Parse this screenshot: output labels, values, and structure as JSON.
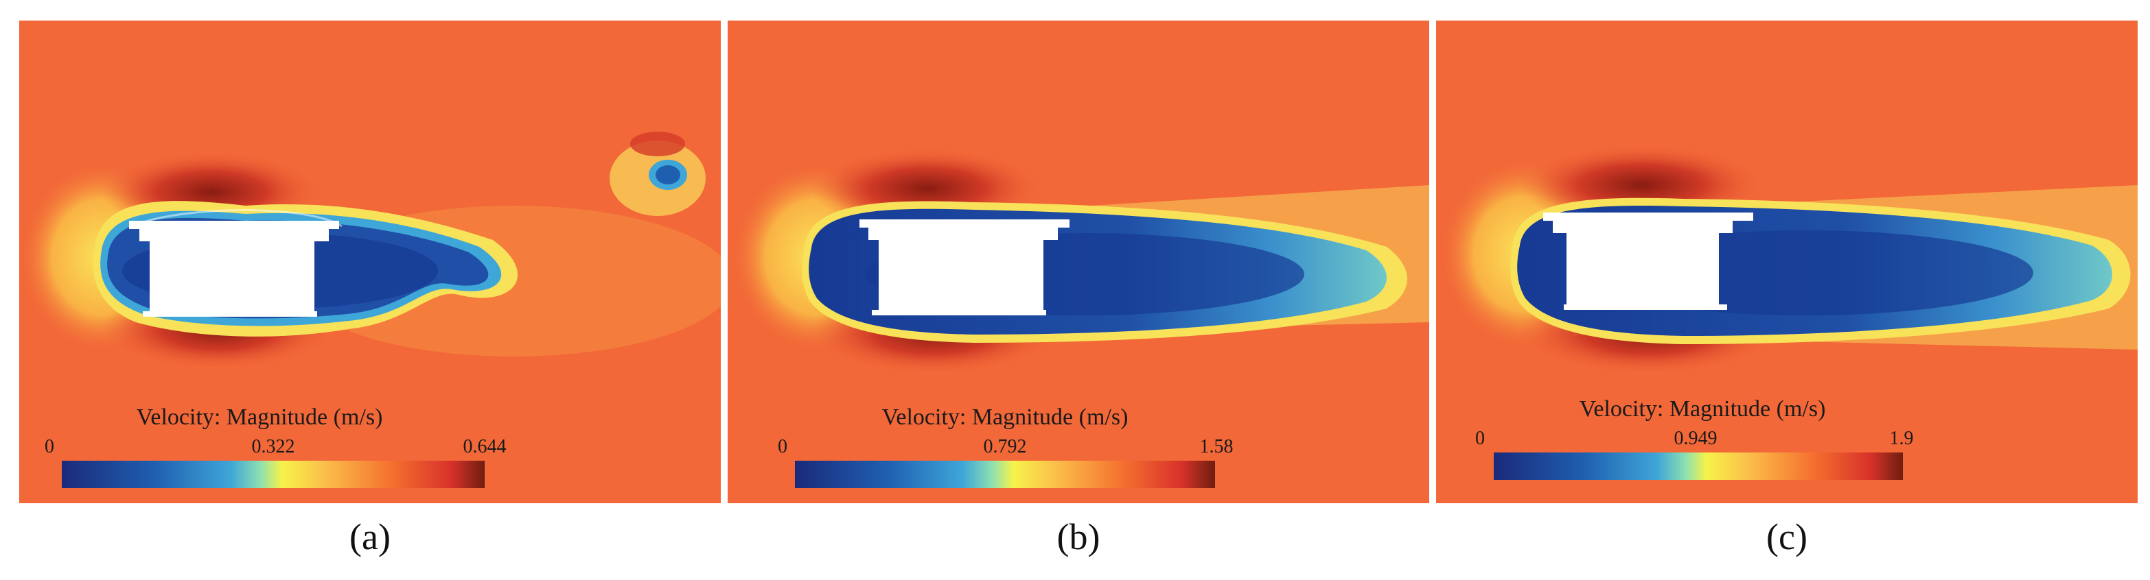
{
  "colors": {
    "freestream": "#f26838",
    "wake_core": "#1a3f9a",
    "colormap": [
      "#1b2a7a",
      "#1f5fb0",
      "#3fa6d8",
      "#8fe0b0",
      "#f6f34a",
      "#fbc04a",
      "#f5702f",
      "#d8322a",
      "#6e1e10"
    ]
  },
  "panels": [
    {
      "caption": "(a)",
      "colorbar": {
        "title": "Velocity: Magnitude (m/s)",
        "min": "0",
        "mid": "0.322",
        "max": "0.644"
      }
    },
    {
      "caption": "(b)",
      "colorbar": {
        "title": "Velocity: Magnitude (m/s)",
        "min": "0",
        "mid": "0.792",
        "max": "1.58"
      }
    },
    {
      "caption": "(c)",
      "colorbar": {
        "title": "Velocity: Magnitude (m/s)",
        "min": "0",
        "mid": "0.949",
        "max": "1.9"
      }
    }
  ]
}
